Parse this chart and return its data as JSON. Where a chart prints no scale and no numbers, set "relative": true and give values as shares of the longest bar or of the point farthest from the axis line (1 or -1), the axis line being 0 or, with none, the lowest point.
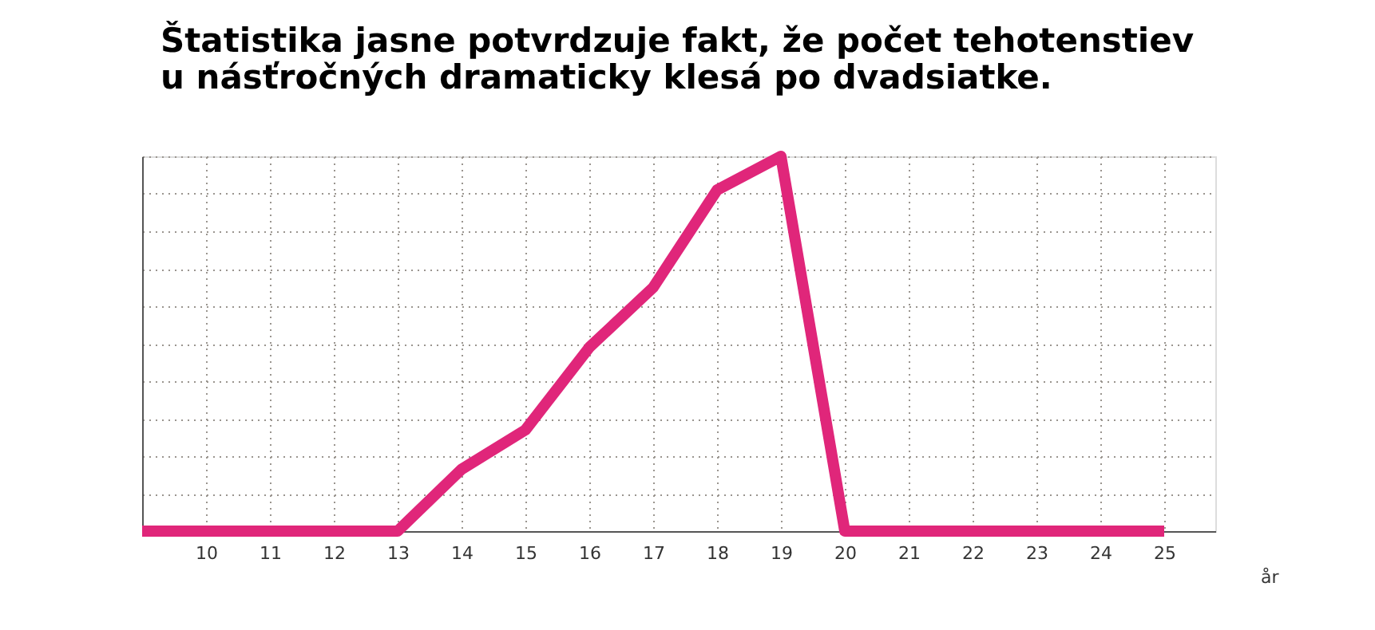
{
  "chart_data": {
    "type": "line",
    "title": [
      "Štatistika jasne potvrdzuje fakt, že počet tehotenstiev",
      "u násťročných dramaticky klesá po dvadsiatke."
    ],
    "xlabel": "år",
    "x": [
      9,
      10,
      11,
      12,
      13,
      14,
      15,
      16,
      17,
      18,
      19,
      20,
      21,
      22,
      23,
      24,
      25
    ],
    "relative": true,
    "series": [
      {
        "color": "#e0267a",
        "values": [
          0,
          0,
          0,
          0,
          0,
          0.165,
          0.27,
          0.49,
          0.65,
          0.91,
          1,
          0,
          0,
          0,
          0,
          0,
          0
        ]
      }
    ],
    "xlim": [
      9,
      25.8
    ],
    "xticks": [
      10,
      11,
      12,
      13,
      14,
      15,
      16,
      17,
      18,
      19,
      20,
      21,
      22,
      23,
      24,
      25
    ],
    "grid": true,
    "line_style": "solid",
    "marker": "none",
    "legend": false
  }
}
